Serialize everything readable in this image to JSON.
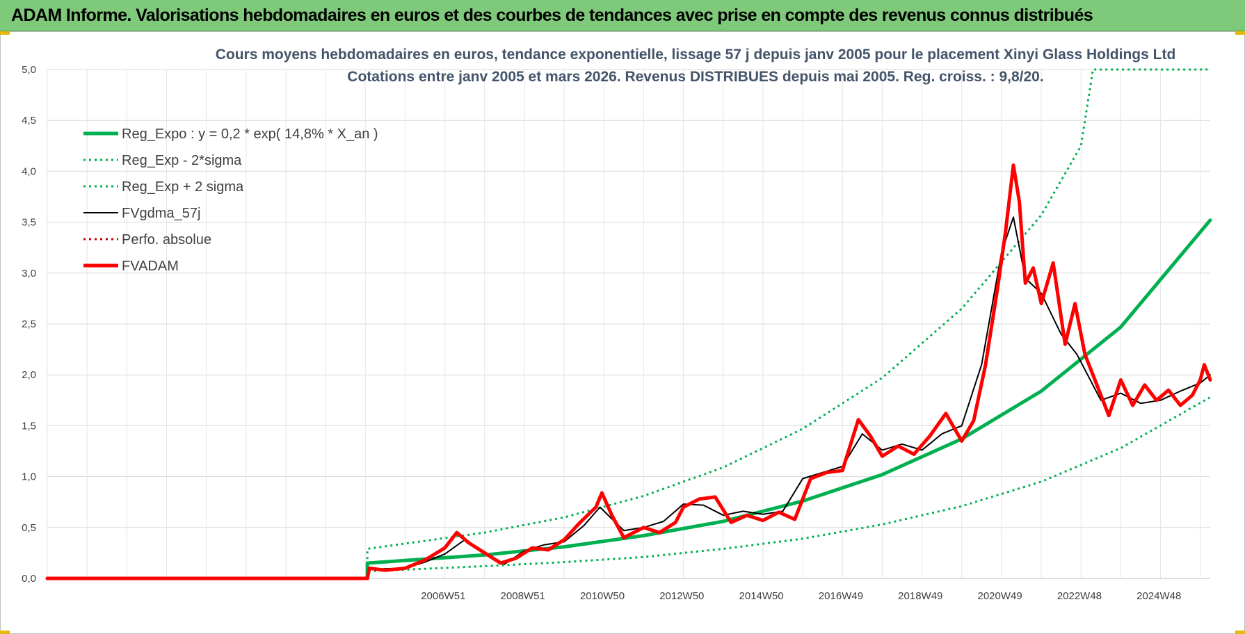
{
  "banner": {
    "title": "ADAM Informe. Valorisations hebdomadaires en euros et des courbes de tendances avec prise en compte des revenus connus distribués"
  },
  "chart_data": {
    "type": "line",
    "title_line1": "Cours moyens hebdomadaires en euros, tendance exponentielle, lissage 57 j depuis janv 2005 pour le placement Xinyi Glass Holdings Ltd",
    "title_line2": "Cotations entre janv 2005 et mars 2026. Revenus DISTRIBUES depuis mai 2005. Reg. croiss. : 9,8/20.",
    "ylim": [
      0,
      5
    ],
    "y_ticks": [
      "0,0",
      "0,5",
      "1,0",
      "1,5",
      "2,0",
      "2,5",
      "3,0",
      "3,5",
      "4,0",
      "4,5",
      "5,0"
    ],
    "x_tick_labels": [
      "2006W51",
      "2008W51",
      "2010W50",
      "2012W50",
      "2014W50",
      "2016W49",
      "2018W49",
      "2020W49",
      "2022W48",
      "2024W48"
    ],
    "x_tick_years": [
      2006.96,
      2008.96,
      2010.96,
      2012.96,
      2014.96,
      2016.96,
      2018.96,
      2020.96,
      2022.96,
      2024.96
    ],
    "xlim": [
      1997.0,
      2026.25
    ],
    "grid": true,
    "legend_position": "top-left",
    "series": [
      {
        "name": "Reg_Expo : y = 0,2 * exp( 14,8% *  X_an )",
        "color": "#00b050",
        "style": "solid-thick",
        "x": [
          1997.0,
          2005.05,
          2005.05,
          2008,
          2010,
          2012,
          2014,
          2016,
          2018,
          2020,
          2022,
          2024,
          2026.25
        ],
        "y": [
          0,
          0,
          0.15,
          0.23,
          0.31,
          0.42,
          0.56,
          0.76,
          1.02,
          1.37,
          1.84,
          2.47,
          3.52
        ]
      },
      {
        "name": "Reg_Exp - 2*sigma",
        "color": "#00b050",
        "style": "dotted",
        "x": [
          1997.0,
          2005.05,
          2005.05,
          2008,
          2010,
          2012,
          2014,
          2016,
          2018,
          2020,
          2022,
          2024,
          2026.25
        ],
        "y": [
          0,
          0,
          0.07,
          0.12,
          0.16,
          0.21,
          0.29,
          0.39,
          0.53,
          0.71,
          0.95,
          1.28,
          1.78
        ]
      },
      {
        "name": "Reg_Exp + 2 sigma",
        "color": "#00b050",
        "style": "dotted",
        "x": [
          1997.0,
          2005.05,
          2005.05,
          2008,
          2010,
          2012,
          2014,
          2016,
          2018,
          2020,
          2022,
          2023.0,
          2023.3,
          2026.25
        ],
        "y": [
          0,
          0,
          0.29,
          0.45,
          0.6,
          0.81,
          1.09,
          1.47,
          1.97,
          2.65,
          3.57,
          4.25,
          5.0,
          5.0
        ]
      },
      {
        "name": "FVgdma_57j",
        "color": "#000000",
        "style": "solid",
        "x": [
          1997.0,
          2005.05,
          2005.1,
          2006.0,
          2006.5,
          2007.0,
          2007.5,
          2008.0,
          2008.5,
          2009.0,
          2009.5,
          2010.0,
          2010.5,
          2010.9,
          2011.5,
          2012.0,
          2012.5,
          2013.0,
          2013.5,
          2014.0,
          2014.5,
          2015.0,
          2015.5,
          2016.0,
          2016.5,
          2017.0,
          2017.5,
          2018.0,
          2018.5,
          2019.0,
          2019.5,
          2020.0,
          2020.5,
          2021.0,
          2021.3,
          2021.6,
          2022.0,
          2022.5,
          2022.9,
          2023.5,
          2024.0,
          2024.5,
          2025.0,
          2025.5,
          2026.0,
          2026.25
        ],
        "y": [
          0,
          0,
          0.09,
          0.1,
          0.16,
          0.24,
          0.38,
          0.26,
          0.14,
          0.27,
          0.33,
          0.36,
          0.52,
          0.7,
          0.47,
          0.5,
          0.56,
          0.73,
          0.72,
          0.62,
          0.66,
          0.63,
          0.66,
          0.98,
          1.04,
          1.1,
          1.42,
          1.26,
          1.32,
          1.26,
          1.42,
          1.5,
          2.1,
          3.2,
          3.55,
          2.95,
          2.8,
          2.4,
          2.2,
          1.75,
          1.82,
          1.72,
          1.75,
          1.84,
          1.92,
          2.0
        ]
      },
      {
        "name": "Perfo. absolue",
        "color": "#c00000",
        "style": "dotted",
        "x": [
          1997.0,
          2005.05
        ],
        "y": [
          0,
          0
        ]
      },
      {
        "name": "FVADAM",
        "color": "#ff0000",
        "style": "solid-thick",
        "x": [
          1997.0,
          2005.05,
          2005.1,
          2005.5,
          2006.0,
          2006.5,
          2007.0,
          2007.3,
          2007.6,
          2008.0,
          2008.4,
          2008.8,
          2009.2,
          2009.6,
          2010.0,
          2010.4,
          2010.8,
          2010.95,
          2011.2,
          2011.5,
          2012.0,
          2012.4,
          2012.8,
          2013.0,
          2013.4,
          2013.8,
          2014.2,
          2014.6,
          2015.0,
          2015.4,
          2015.8,
          2016.2,
          2016.6,
          2017.0,
          2017.4,
          2017.7,
          2018.0,
          2018.4,
          2018.8,
          2019.2,
          2019.6,
          2020.0,
          2020.3,
          2020.6,
          2020.9,
          2021.1,
          2021.3,
          2021.45,
          2021.6,
          2021.8,
          2022.0,
          2022.3,
          2022.6,
          2022.85,
          2023.1,
          2023.4,
          2023.7,
          2024.0,
          2024.3,
          2024.6,
          2024.9,
          2025.2,
          2025.5,
          2025.8,
          2026.0,
          2026.1,
          2026.25
        ],
        "y": [
          0,
          0,
          0.1,
          0.08,
          0.1,
          0.18,
          0.3,
          0.45,
          0.35,
          0.25,
          0.15,
          0.2,
          0.3,
          0.28,
          0.38,
          0.55,
          0.7,
          0.84,
          0.62,
          0.4,
          0.5,
          0.45,
          0.55,
          0.7,
          0.78,
          0.8,
          0.55,
          0.62,
          0.57,
          0.65,
          0.58,
          0.98,
          1.04,
          1.06,
          1.56,
          1.4,
          1.2,
          1.3,
          1.22,
          1.4,
          1.62,
          1.35,
          1.55,
          2.1,
          2.85,
          3.4,
          4.06,
          3.7,
          2.9,
          3.05,
          2.7,
          3.1,
          2.3,
          2.7,
          2.2,
          1.9,
          1.6,
          1.95,
          1.7,
          1.9,
          1.75,
          1.85,
          1.7,
          1.8,
          1.95,
          2.1,
          1.95
        ]
      }
    ]
  }
}
